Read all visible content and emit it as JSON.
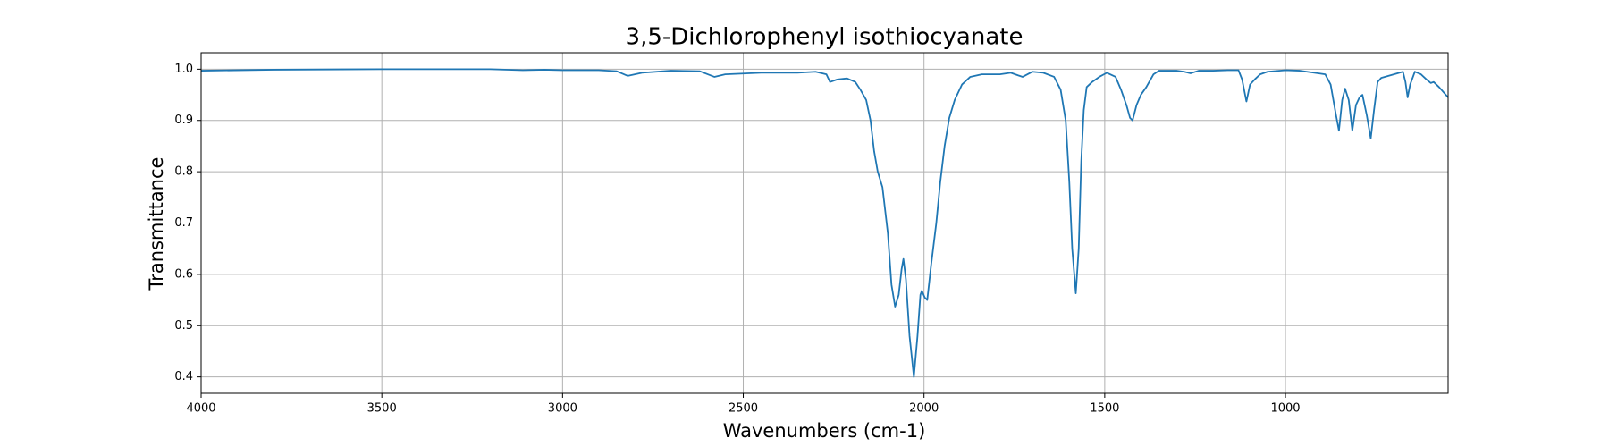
{
  "chart_data": {
    "type": "line",
    "title": "3,5-Dichlorophenyl isothiocyanate",
    "x_label": "Wavenumbers (cm-1)",
    "y_label": "Transmittance",
    "xlim": [
      4000,
      550
    ],
    "ylim": [
      0.368,
      1.032
    ],
    "xticks": [
      4000,
      3500,
      3000,
      2500,
      2000,
      1500,
      1000
    ],
    "yticks": [
      0.4,
      0.5,
      0.6,
      0.7,
      0.8,
      0.9,
      {
        "value": 1,
        "label": "1.0"
      }
    ],
    "grid": true,
    "color": "#1f77b4",
    "x": [
      4000,
      3800,
      3500,
      3200,
      3110,
      3050,
      3000,
      2900,
      2850,
      2820,
      2780,
      2700,
      2620,
      2580,
      2550,
      2450,
      2350,
      2300,
      2270,
      2260,
      2240,
      2213,
      2190,
      2176,
      2160,
      2148,
      2138,
      2128,
      2115,
      2100,
      2090,
      2080,
      2070,
      2062,
      2057,
      2050,
      2040,
      2028,
      2018,
      2010,
      2006,
      1998,
      1991,
      1980,
      1966,
      1955,
      1943,
      1930,
      1915,
      1895,
      1872,
      1840,
      1790,
      1760,
      1740,
      1727,
      1700,
      1670,
      1640,
      1622,
      1608,
      1598,
      1590,
      1580,
      1572,
      1565,
      1558,
      1550,
      1535,
      1515,
      1494,
      1470,
      1455,
      1440,
      1430,
      1423,
      1412,
      1400,
      1385,
      1365,
      1350,
      1300,
      1280,
      1262,
      1240,
      1200,
      1160,
      1130,
      1120,
      1108,
      1098,
      1085,
      1070,
      1050,
      1000,
      960,
      920,
      890,
      875,
      860,
      852,
      843,
      835,
      825,
      815,
      805,
      795,
      787,
      775,
      764,
      755,
      745,
      735,
      700,
      675,
      668,
      662,
      655,
      642,
      625,
      610,
      598,
      590,
      575,
      550
    ],
    "values": [
      0.997,
      0.999,
      1.0,
      1.0,
      0.998,
      0.999,
      0.998,
      0.998,
      0.996,
      0.987,
      0.993,
      0.997,
      0.996,
      0.985,
      0.99,
      0.993,
      0.993,
      0.995,
      0.99,
      0.975,
      0.98,
      0.982,
      0.975,
      0.96,
      0.94,
      0.9,
      0.84,
      0.8,
      0.77,
      0.68,
      0.58,
      0.537,
      0.56,
      0.61,
      0.63,
      0.59,
      0.48,
      0.4,
      0.48,
      0.56,
      0.568,
      0.555,
      0.55,
      0.62,
      0.7,
      0.78,
      0.85,
      0.905,
      0.94,
      0.97,
      0.985,
      0.99,
      0.99,
      0.993,
      0.988,
      0.985,
      0.995,
      0.993,
      0.985,
      0.96,
      0.9,
      0.78,
      0.65,
      0.563,
      0.65,
      0.82,
      0.92,
      0.965,
      0.975,
      0.985,
      0.993,
      0.985,
      0.96,
      0.93,
      0.905,
      0.9,
      0.93,
      0.95,
      0.965,
      0.99,
      0.997,
      0.997,
      0.995,
      0.992,
      0.997,
      0.997,
      0.998,
      0.998,
      0.98,
      0.937,
      0.97,
      0.98,
      0.99,
      0.995,
      0.998,
      0.997,
      0.993,
      0.99,
      0.97,
      0.91,
      0.88,
      0.94,
      0.962,
      0.94,
      0.88,
      0.93,
      0.945,
      0.95,
      0.91,
      0.865,
      0.92,
      0.975,
      0.983,
      0.99,
      0.995,
      0.975,
      0.945,
      0.97,
      0.995,
      0.99,
      0.98,
      0.973,
      0.975,
      0.965,
      0.945
    ]
  }
}
